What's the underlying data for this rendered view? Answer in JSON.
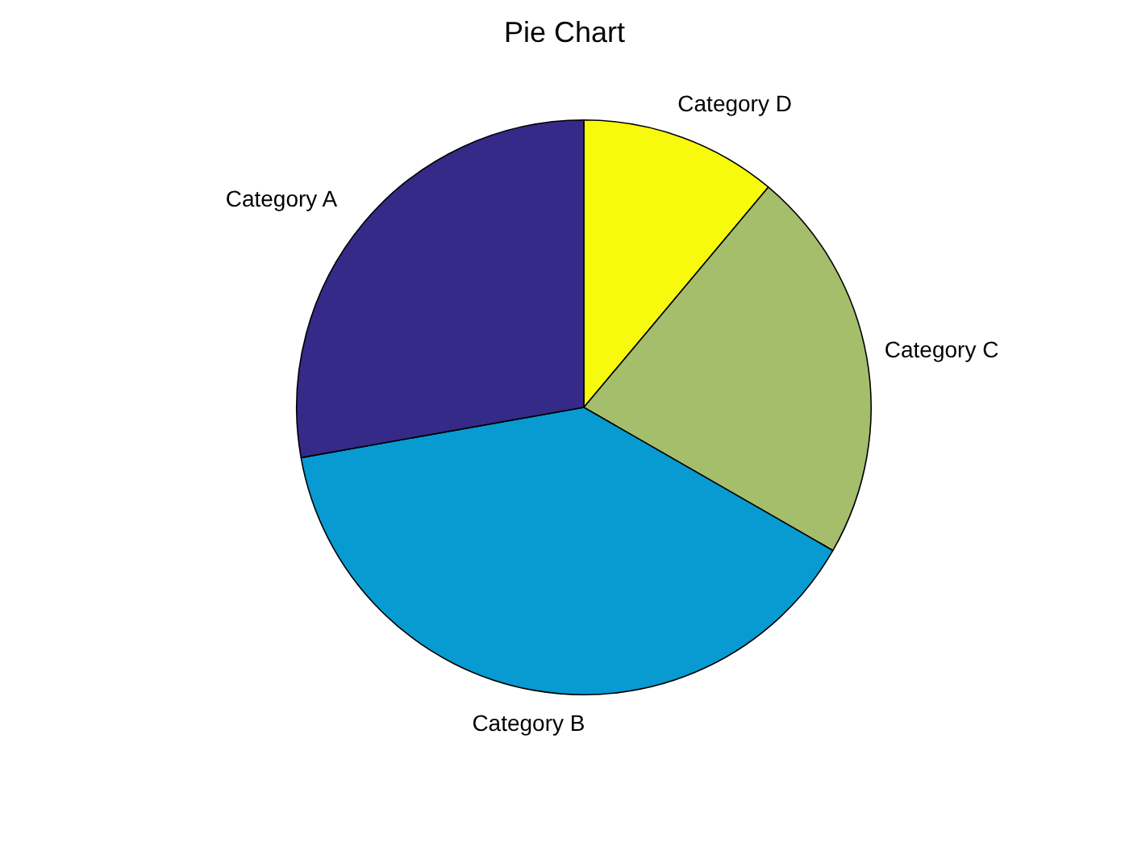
{
  "chart_data": {
    "type": "pie",
    "title": "Pie Chart",
    "categories": [
      "Category A",
      "Category B",
      "Category C",
      "Category D"
    ],
    "values": [
      27.8,
      38.9,
      22.2,
      11.1
    ],
    "colors": [
      "#352a87",
      "#079bd2",
      "#a5be6b",
      "#f8fa0d"
    ],
    "legend": false
  }
}
